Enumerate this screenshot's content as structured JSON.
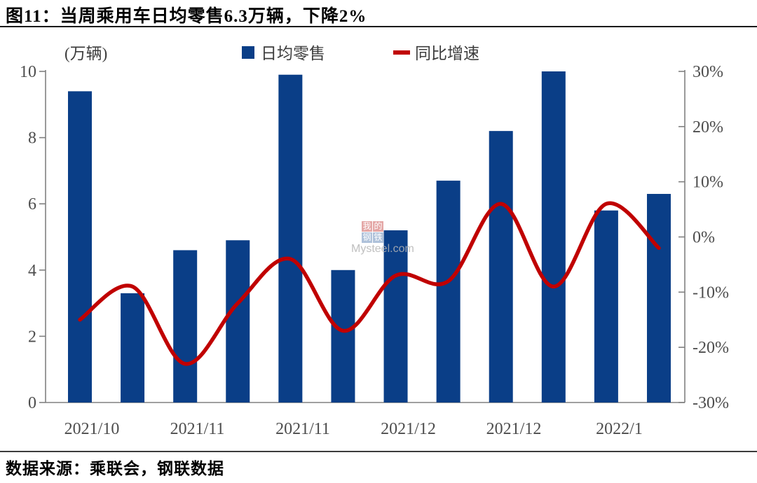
{
  "title": "图11：当周乘用车日均零售6.3万辆，下降2%",
  "unit_label": "(万辆)",
  "legend": {
    "bars_label": "日均零售",
    "line_label": "同比增速"
  },
  "watermark": {
    "cn_row1": "我的",
    "cn_row2": "钢铁",
    "en": "Mysteel.com"
  },
  "source_text": "数据来源：乘联会，钢联数据",
  "colors": {
    "bar": "#0a3e87",
    "line": "#c00000",
    "axis": "#808080",
    "tick_text": "#4d4d4d"
  },
  "chart_data": {
    "type": "bar",
    "subtype": "bar+line combo, dual axis",
    "title": "当周乘用车日均零售6.3万辆，下降2%",
    "categories": [
      "w1",
      "w2",
      "w3",
      "w4",
      "w5",
      "w6",
      "w7",
      "w8",
      "w9",
      "w10",
      "w11",
      "w12"
    ],
    "x_tick_labels": [
      "2021/10",
      "2021/11",
      "2021/11",
      "2021/12",
      "2021/12",
      "2022/1"
    ],
    "series": [
      {
        "name": "日均零售",
        "type": "bar",
        "axis": "left",
        "unit": "万辆",
        "values": [
          9.4,
          3.3,
          4.6,
          4.9,
          9.9,
          4.0,
          5.2,
          6.7,
          8.2,
          10.0,
          5.8,
          6.3
        ]
      },
      {
        "name": "同比增速",
        "type": "line",
        "axis": "right",
        "unit": "%",
        "values": [
          -15,
          -9,
          -23,
          -12,
          -4,
          -17,
          -7,
          -8,
          6,
          -9,
          6,
          -2
        ]
      }
    ],
    "left_axis": {
      "label": "(万辆)",
      "min": 0,
      "max": 10,
      "tick_labels": [
        "0",
        "2",
        "4",
        "6",
        "8",
        "10"
      ],
      "tick_values": [
        0,
        2,
        4,
        6,
        8,
        10
      ]
    },
    "right_axis": {
      "min": -30,
      "max": 30,
      "tick_labels": [
        "30%",
        "20%",
        "10%",
        "0%",
        "-10%",
        "-20%",
        "-30%"
      ],
      "tick_values": [
        30,
        20,
        10,
        0,
        -10,
        -20,
        -30
      ]
    },
    "grid": false,
    "legend_position": "top"
  }
}
